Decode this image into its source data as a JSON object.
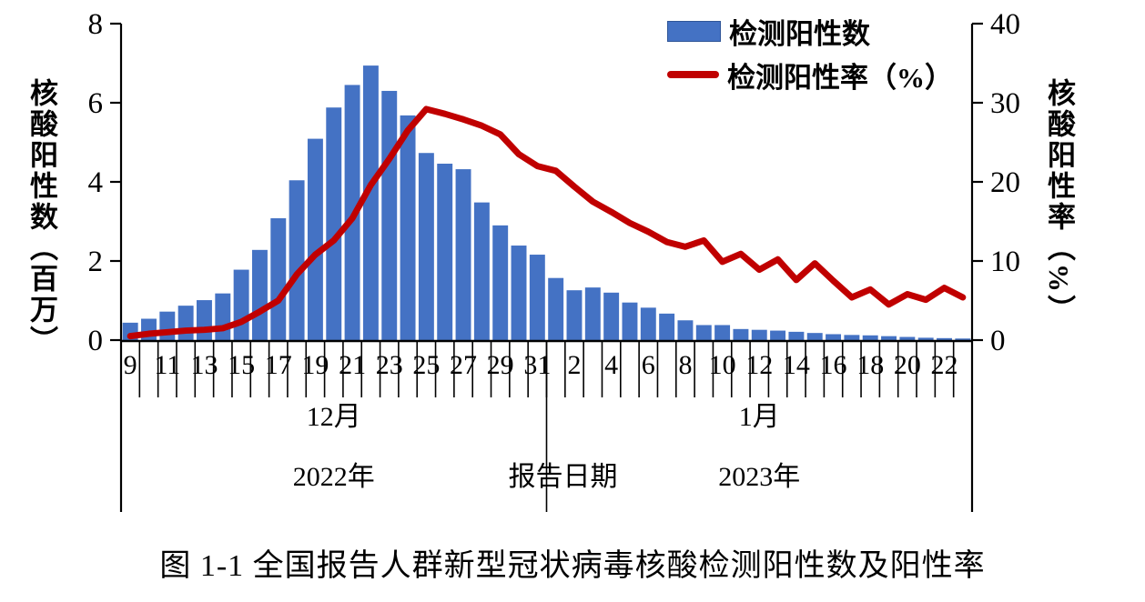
{
  "figure_title": "图 1-1 全国报告人群新型冠状病毒核酸检测阳性数及阳性率",
  "legend": {
    "bar_label": "检测阳性数",
    "line_label": "检测阳性率（%）"
  },
  "axes": {
    "left": {
      "title": "核酸阳性数（百万）",
      "ticks": [
        "0",
        "2",
        "4",
        "6",
        "8"
      ]
    },
    "right": {
      "title": "核酸阳性率（%）",
      "ticks": [
        "0",
        "10",
        "20",
        "30",
        "40"
      ]
    },
    "x": {
      "title": "报告日期",
      "groups": [
        {
          "month": "12月",
          "year": "2022年",
          "span": 23
        },
        {
          "month": "1月",
          "year": "2023年",
          "span": 23
        }
      ]
    }
  },
  "colors": {
    "bar": "#4472C4",
    "line": "#C00000",
    "axis": "#000000"
  },
  "chart_data": {
    "type": "combo",
    "title": "图 1-1 全国报告人群新型冠状病毒核酸检测阳性数及阳性率",
    "categories": [
      "12/9",
      "12/10",
      "12/11",
      "12/12",
      "12/13",
      "12/14",
      "12/15",
      "12/16",
      "12/17",
      "12/18",
      "12/19",
      "12/20",
      "12/21",
      "12/22",
      "12/23",
      "12/24",
      "12/25",
      "12/26",
      "12/27",
      "12/28",
      "12/29",
      "12/30",
      "12/31",
      "1/1",
      "1/2",
      "1/3",
      "1/4",
      "1/5",
      "1/6",
      "1/7",
      "1/8",
      "1/9",
      "1/10",
      "1/11",
      "1/12",
      "1/13",
      "1/14",
      "1/15",
      "1/16",
      "1/17",
      "1/18",
      "1/19",
      "1/20",
      "1/21",
      "1/22",
      "1/23"
    ],
    "x_labels": [
      "9",
      "",
      "11",
      "",
      "13",
      "",
      "15",
      "",
      "17",
      "",
      "19",
      "",
      "21",
      "",
      "23",
      "",
      "25",
      "",
      "27",
      "",
      "29",
      "",
      "31",
      "",
      "2",
      "",
      "4",
      "",
      "6",
      "",
      "8",
      "",
      "10",
      "",
      "12",
      "",
      "14",
      "",
      "16",
      "",
      "18",
      "",
      "20",
      "",
      "22",
      ""
    ],
    "series": [
      {
        "name": "检测阳性数",
        "type": "bar",
        "axis": "left",
        "unit": "百万",
        "values": [
          0.44,
          0.54,
          0.72,
          0.87,
          1.01,
          1.18,
          1.78,
          2.28,
          3.08,
          4.04,
          5.09,
          5.88,
          6.45,
          6.94,
          6.3,
          5.68,
          4.73,
          4.46,
          4.32,
          3.48,
          2.9,
          2.39,
          2.16,
          1.57,
          1.26,
          1.33,
          1.2,
          0.95,
          0.82,
          0.67,
          0.5,
          0.38,
          0.38,
          0.28,
          0.26,
          0.24,
          0.21,
          0.18,
          0.15,
          0.13,
          0.12,
          0.1,
          0.08,
          0.06,
          0.05,
          0.04
        ]
      },
      {
        "name": "检测阳性率（%）",
        "type": "line",
        "axis": "right",
        "unit": "%",
        "values": [
          0.5,
          0.8,
          1.0,
          1.2,
          1.3,
          1.5,
          2.3,
          3.6,
          5.0,
          8.3,
          10.8,
          12.6,
          15.4,
          19.6,
          22.9,
          26.5,
          29.2,
          28.6,
          27.9,
          27.1,
          26.0,
          23.5,
          22.0,
          21.4,
          19.4,
          17.5,
          16.2,
          14.8,
          13.7,
          12.4,
          11.8,
          12.6,
          9.9,
          10.9,
          8.9,
          10.2,
          7.6,
          9.7,
          7.5,
          5.4,
          6.4,
          4.5,
          5.8,
          5.1,
          6.6,
          5.4
        ]
      }
    ],
    "left_ylim": [
      0,
      8
    ],
    "right_ylim": [
      0,
      40
    ],
    "grid": false,
    "legend_position": "top-right"
  }
}
